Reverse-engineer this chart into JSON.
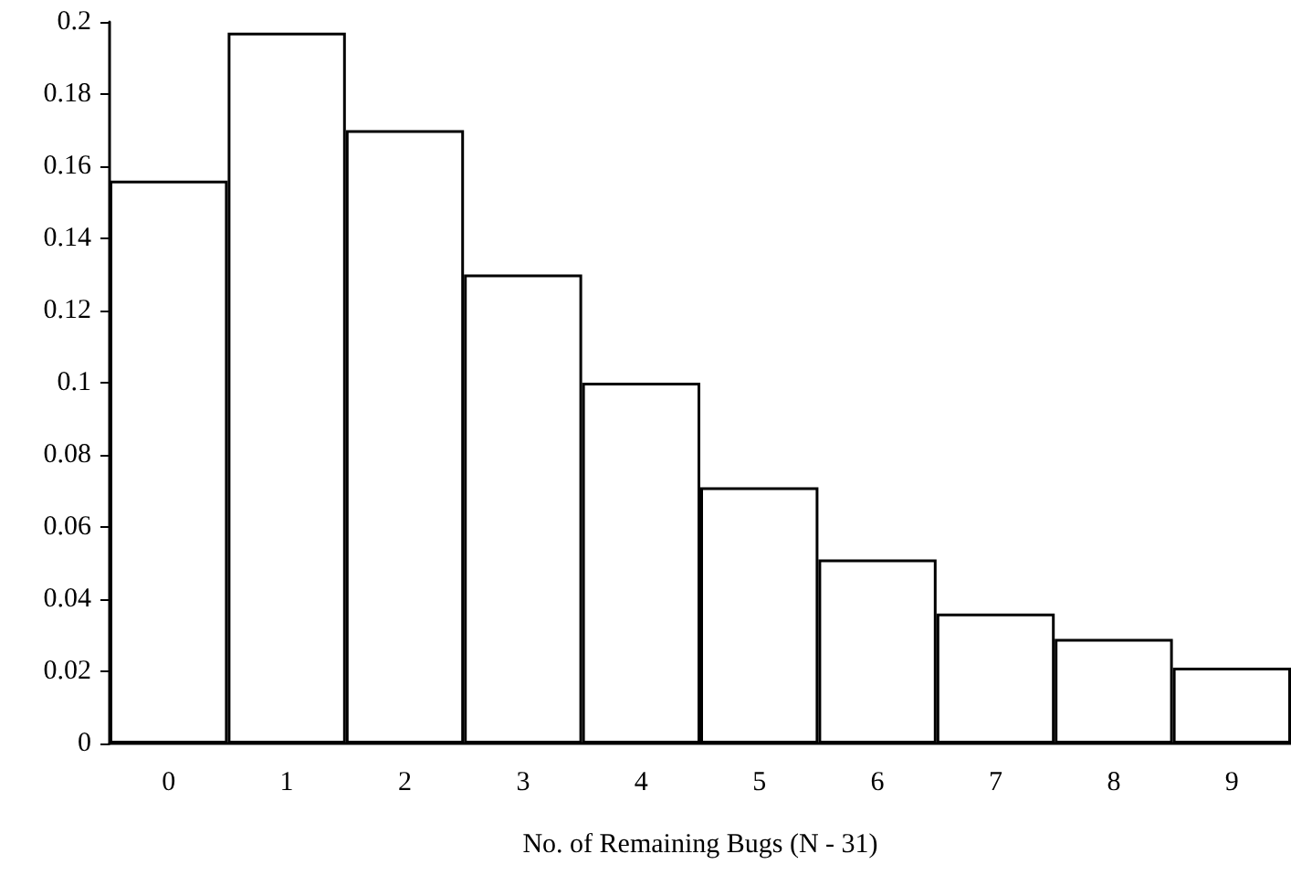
{
  "chart_data": {
    "type": "bar",
    "xlabel": "No. of Remaining Bugs (N - 31)",
    "categories": [
      "0",
      "1",
      "2",
      "3",
      "4",
      "5",
      "6",
      "7",
      "8",
      "9"
    ],
    "values": [
      0.156,
      0.197,
      0.17,
      0.13,
      0.1,
      0.071,
      0.051,
      0.036,
      0.029,
      0.021
    ],
    "color": "#ffffff",
    "ylim": [
      0,
      0.2
    ],
    "yticks": [
      0,
      0.02,
      0.04,
      0.06,
      0.08,
      0.1,
      0.12,
      0.14,
      0.16,
      0.18,
      0.2
    ],
    "grid": false
  }
}
